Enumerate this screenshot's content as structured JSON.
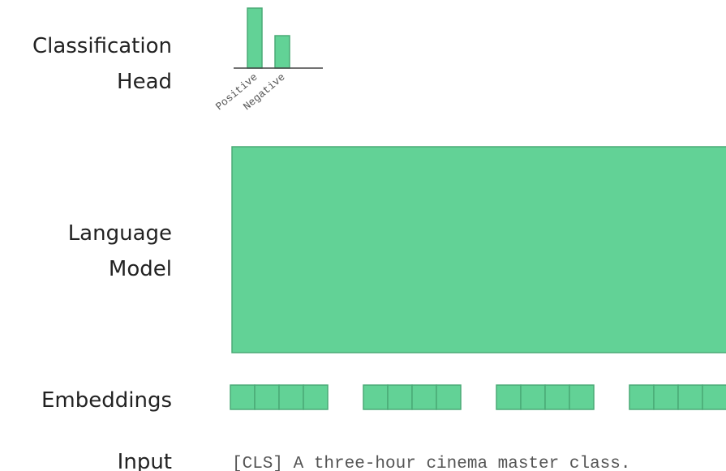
{
  "layers": [
    {
      "label": [
        "Classification",
        "Head"
      ],
      "classes": [
        "Positive",
        "Negative"
      ]
    },
    {
      "label": [
        "Language",
        "Model"
      ]
    },
    {
      "label": [
        "Embeddings"
      ]
    },
    {
      "label": [
        "Input"
      ],
      "text": "[CLS] A three-hour cinema master class."
    }
  ]
}
